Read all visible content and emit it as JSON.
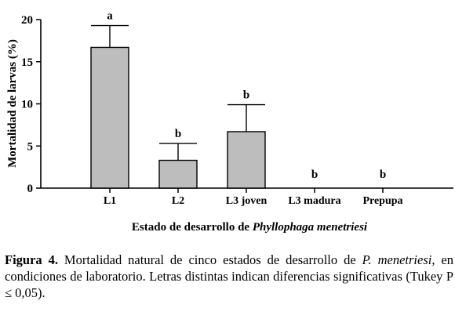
{
  "chart_data": {
    "type": "bar",
    "categories": [
      "L1",
      "L2",
      "L3 joven",
      "L3 madura",
      "Prepupa"
    ],
    "values": [
      16.7,
      3.3,
      6.7,
      0,
      0
    ],
    "error_plus": [
      2.6,
      2.0,
      3.2,
      0,
      0
    ],
    "significance": [
      "a",
      "b",
      "b",
      "b",
      "b"
    ],
    "ylabel": "Mortalidad de larvas (%)",
    "xlabel_plain": "Estado de desarrollo de ",
    "xlabel_italic": "Phyllophaga menetriesi",
    "ylim": [
      0,
      20
    ],
    "yticks": [
      0,
      5,
      10,
      15,
      20
    ],
    "grid": false,
    "bar_color": "#bdbdbd"
  },
  "caption": {
    "label": "Figura 4.",
    "text_1": " Mortalidad natural de cinco estados de desarrollo de ",
    "italic": "P. menetriesi",
    "text_2": ", en condiciones de laboratorio. Letras distintas indican diferencias significativas (Tukey P ≤ 0,05)."
  }
}
